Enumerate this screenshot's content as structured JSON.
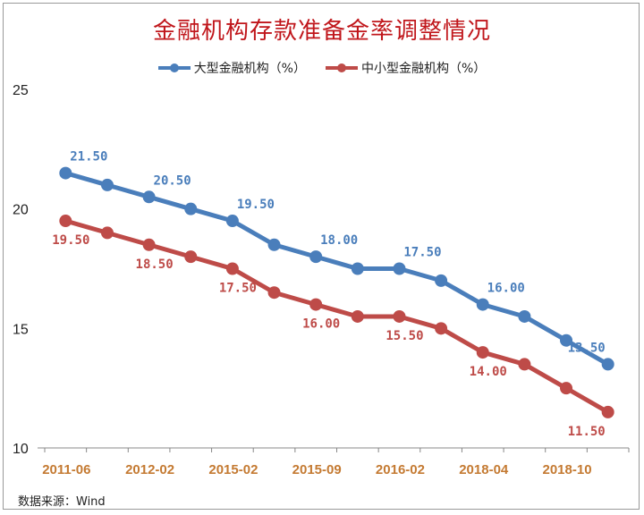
{
  "chart_data": {
    "type": "line",
    "title": "金融机构存款准备金率调整情况",
    "categories": [
      "2011-06",
      "",
      "2012-02",
      "",
      "2015-02",
      "",
      "2015-09",
      "",
      "2016-02",
      "",
      "2018-04",
      "",
      "2018-10",
      ""
    ],
    "series": [
      {
        "name": "大型金融机构（%）",
        "color": "#4a7ebb",
        "values": [
          21.5,
          21,
          20.5,
          20,
          19.5,
          18.5,
          18,
          17.5,
          17.5,
          17,
          16,
          15.5,
          14.5,
          13.5
        ],
        "labels": [
          "21.50",
          "",
          "20.50",
          "",
          "19.50",
          "",
          "18.00",
          "",
          "17.50",
          "",
          "16.00",
          "",
          "",
          "13.50"
        ]
      },
      {
        "name": "中小型金融机构（%）",
        "color": "#be4b48",
        "values": [
          19.5,
          19,
          18.5,
          18,
          17.5,
          16.5,
          16,
          15.5,
          15.5,
          15,
          14,
          13.5,
          12.5,
          11.5
        ],
        "labels": [
          "19.50",
          "",
          "18.50",
          "",
          "17.50",
          "",
          "16.00",
          "",
          "15.50",
          "",
          "14.00",
          "",
          "",
          "11.50"
        ]
      }
    ],
    "ylim": [
      10,
      25
    ],
    "yticks": [
      10,
      15,
      20,
      25
    ],
    "grid": false,
    "legend": "top",
    "xtick_color": "#c47a32"
  },
  "source": "数据来源：Wind"
}
